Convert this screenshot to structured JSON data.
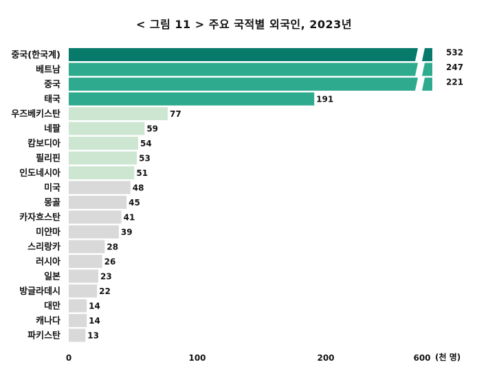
{
  "chart_data": {
    "type": "bar",
    "orientation": "horizontal",
    "title": "< 그림 11 > 주요 국적별 외국인, 2023년",
    "unit": "(천 명)",
    "xlim": [
      0,
      600
    ],
    "xticks": [
      0,
      100,
      200,
      600
    ],
    "axis_break": true,
    "grid": false,
    "categories": [
      "중국(한국계)",
      "베트남",
      "중국",
      "태국",
      "우즈베키스탄",
      "네팔",
      "캄보디아",
      "필리핀",
      "인도네시아",
      "미국",
      "몽골",
      "카자흐스탄",
      "미얀마",
      "스리랑카",
      "러시아",
      "일본",
      "방글라데시",
      "대만",
      "캐나다",
      "파키스탄"
    ],
    "values": [
      532,
      247,
      221,
      191,
      77,
      59,
      54,
      53,
      51,
      48,
      45,
      41,
      39,
      28,
      26,
      23,
      22,
      14,
      14,
      13
    ],
    "colors": {
      "top": "#077a6b",
      "high": "#2eab8e",
      "mid": "#cde6d2",
      "low": "#d9d9d9"
    },
    "color_groups": [
      "top",
      "high",
      "high",
      "high",
      "mid",
      "mid",
      "mid",
      "mid",
      "mid",
      "low",
      "low",
      "low",
      "low",
      "low",
      "low",
      "low",
      "low",
      "low",
      "low",
      "low"
    ]
  }
}
